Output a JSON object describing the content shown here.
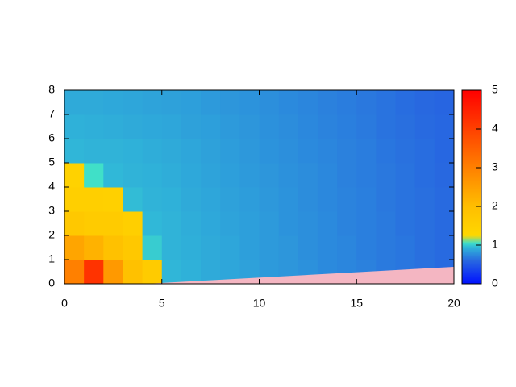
{
  "chart_data": {
    "type": "heatmap",
    "x": [
      0.5,
      1.5,
      2.5,
      3.5,
      4.5,
      5.5,
      6.5,
      7.5,
      8.5,
      9.5,
      10.5,
      11.5,
      12.5,
      13.5,
      14.5,
      15.5,
      16.5,
      17.5,
      18.5,
      19.5
    ],
    "y": [
      0.5,
      1.5,
      2.5,
      3.5,
      4.5,
      5.5,
      6.5,
      7.5
    ],
    "z": [
      [
        3.0,
        4.2,
        2.6,
        1.9,
        1.6,
        0.94,
        0.92,
        0.89,
        0.87,
        0.85,
        0.82,
        0.8,
        0.78,
        0.75,
        0.73,
        0.71,
        0.68,
        0.66,
        0.64,
        0.61
      ],
      [
        2.4,
        2.2,
        1.9,
        1.7,
        1.0,
        0.93,
        0.91,
        0.89,
        0.87,
        0.84,
        0.82,
        0.8,
        0.77,
        0.75,
        0.73,
        0.7,
        0.68,
        0.66,
        0.63,
        0.61
      ],
      [
        1.7,
        1.6,
        1.6,
        1.5,
        0.95,
        0.93,
        0.9,
        0.88,
        0.86,
        0.84,
        0.82,
        0.79,
        0.77,
        0.75,
        0.72,
        0.7,
        0.68,
        0.65,
        0.63,
        0.61
      ],
      [
        1.5,
        1.5,
        1.45,
        0.96,
        0.93,
        0.92,
        0.89,
        0.87,
        0.85,
        0.83,
        0.81,
        0.79,
        0.76,
        0.74,
        0.72,
        0.7,
        0.67,
        0.65,
        0.63,
        0.61
      ],
      [
        1.4,
        1.05,
        0.95,
        0.93,
        0.92,
        0.9,
        0.88,
        0.86,
        0.84,
        0.82,
        0.8,
        0.78,
        0.76,
        0.74,
        0.71,
        0.69,
        0.67,
        0.65,
        0.62,
        0.6
      ],
      [
        0.94,
        0.93,
        0.93,
        0.92,
        0.9,
        0.89,
        0.87,
        0.85,
        0.83,
        0.81,
        0.79,
        0.77,
        0.75,
        0.73,
        0.71,
        0.69,
        0.66,
        0.64,
        0.62,
        0.59
      ],
      [
        0.92,
        0.91,
        0.9,
        0.89,
        0.88,
        0.87,
        0.85,
        0.84,
        0.82,
        0.8,
        0.78,
        0.76,
        0.74,
        0.72,
        0.7,
        0.68,
        0.65,
        0.63,
        0.61,
        0.59
      ],
      [
        0.89,
        0.89,
        0.88,
        0.87,
        0.86,
        0.85,
        0.84,
        0.82,
        0.8,
        0.79,
        0.77,
        0.75,
        0.73,
        0.71,
        0.69,
        0.67,
        0.65,
        0.62,
        0.6,
        0.58
      ]
    ],
    "xlim": [
      0,
      20
    ],
    "xticks": [
      0,
      5,
      10,
      15,
      20
    ],
    "ylim": [
      0,
      8
    ],
    "yticks": [
      0,
      1,
      2,
      3,
      4,
      5,
      6,
      7,
      8
    ],
    "zlim": [
      0,
      5
    ],
    "zticks": [
      0,
      1,
      2,
      3,
      4,
      5
    ]
  }
}
